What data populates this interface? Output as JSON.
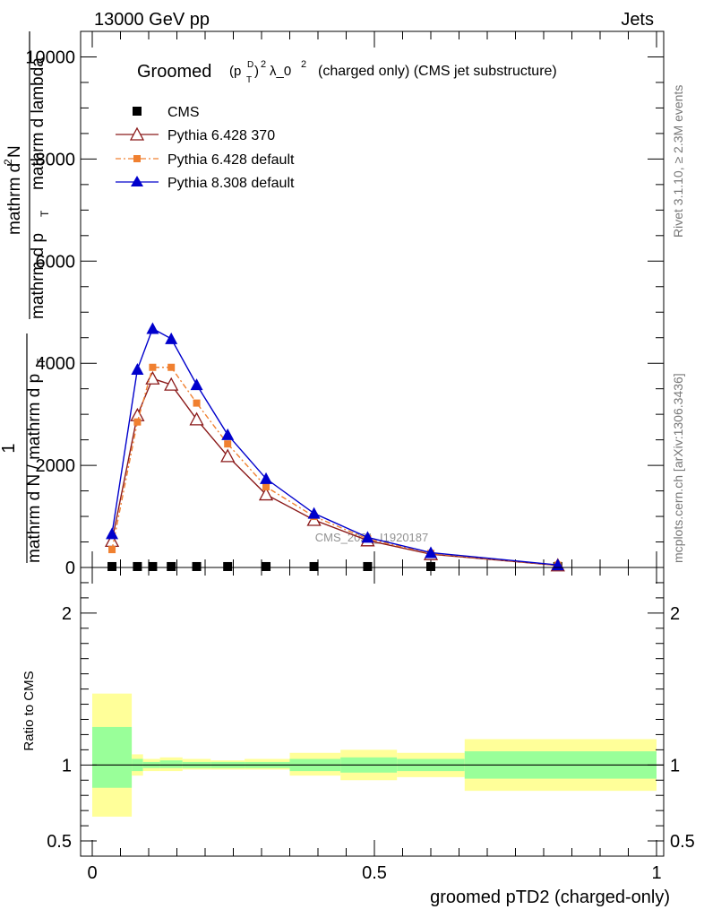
{
  "header": {
    "energy_label": "13000 GeV pp",
    "process_label": "Jets",
    "rivet_label": "Rivet 3.1.10, ≥ 2.3M events",
    "mcplots_label": "mcplots.cern.ch [arXiv:1306.3436]",
    "analysis_watermark": "CMS_2021_I1920187"
  },
  "chart_data": [
    {
      "type": "line",
      "title_main": "Groomed",
      "title_formula": "(p",
      "title_sup_D": "D",
      "title_sub_T": "T",
      "title_close": ")",
      "title_sup_2": "2",
      "title_lambda": "λ_0",
      "title_sup_2b": "2",
      "title_suffix": "(charged only) (CMS jet substructure)",
      "ylabel_top": "1",
      "ylabel_frac_bottom": "mathrm d N / mathrm d p",
      "ylabel_frac_bottom_sub": "T",
      "ylabel_num": "mathrm d",
      "ylabel_num_sup": "2",
      "ylabel_num_tail": "N",
      "ylabel_den": "mathrm d p",
      "ylabel_den_sub": "T",
      "ylabel_den_tail": "mathrm d lambda",
      "xlim": [
        0,
        1
      ],
      "ylim": [
        0,
        10500
      ],
      "y_ticks": [
        0,
        2000,
        4000,
        6000,
        8000,
        10000
      ],
      "y_tick_labels": [
        "0",
        "2000",
        "4000",
        "6000",
        "8000",
        "10000"
      ],
      "x": [
        0.035,
        0.08,
        0.107,
        0.14,
        0.185,
        0.24,
        0.308,
        0.393,
        0.488,
        0.6,
        0.825
      ],
      "series": [
        {
          "name": "CMS",
          "color": "#000000",
          "marker": "square",
          "values": [
            18,
            18,
            18,
            18,
            18,
            18,
            18,
            18,
            18,
            18,
            18
          ]
        },
        {
          "name": "Pythia 6.428 370",
          "color": "#8b1a1a",
          "marker": "open-triangle",
          "values": [
            520,
            2980,
            3700,
            3580,
            2900,
            2180,
            1430,
            930,
            530,
            260,
            40
          ]
        },
        {
          "name": "Pythia 6.428 default",
          "color": "#f08030",
          "marker": "square-small",
          "values": [
            350,
            2850,
            3920,
            3920,
            3220,
            2420,
            1580,
            1000,
            560,
            275,
            45
          ]
        },
        {
          "name": "Pythia 8.308 default",
          "color": "#0000cc",
          "marker": "filled-triangle",
          "values": [
            660,
            3880,
            4680,
            4480,
            3580,
            2600,
            1740,
            1060,
            590,
            290,
            50
          ]
        }
      ],
      "legend_position": "top-left"
    },
    {
      "type": "area",
      "ylabel": "Ratio to CMS",
      "xlabel": "groomed pTD2 (charged-only)",
      "ylim": [
        0.4,
        2.3
      ],
      "y_ticks": [
        0.5,
        1,
        2
      ],
      "y_tick_labels": [
        "0.5",
        "1",
        "2"
      ],
      "x_ticks": [
        0,
        0.5,
        1
      ],
      "x_tick_labels": [
        "0",
        "0.5",
        "1"
      ],
      "green_band_color": "#99ff99",
      "yellow_band_color": "#ffff99",
      "bins": [
        {
          "lo": 0.0,
          "hi": 0.07,
          "inner": [
            0.85,
            1.25
          ],
          "outer": [
            0.66,
            1.47
          ]
        },
        {
          "lo": 0.07,
          "hi": 0.09,
          "inner": [
            0.96,
            1.04
          ],
          "outer": [
            0.93,
            1.07
          ]
        },
        {
          "lo": 0.09,
          "hi": 0.12,
          "inner": [
            0.98,
            1.02
          ],
          "outer": [
            0.96,
            1.04
          ]
        },
        {
          "lo": 0.12,
          "hi": 0.16,
          "inner": [
            0.98,
            1.03
          ],
          "outer": [
            0.96,
            1.05
          ]
        },
        {
          "lo": 0.16,
          "hi": 0.21,
          "inner": [
            0.98,
            1.02
          ],
          "outer": [
            0.97,
            1.04
          ]
        },
        {
          "lo": 0.21,
          "hi": 0.27,
          "inner": [
            0.98,
            1.02
          ],
          "outer": [
            0.97,
            1.03
          ]
        },
        {
          "lo": 0.27,
          "hi": 0.35,
          "inner": [
            0.98,
            1.02
          ],
          "outer": [
            0.97,
            1.04
          ]
        },
        {
          "lo": 0.35,
          "hi": 0.44,
          "inner": [
            0.96,
            1.04
          ],
          "outer": [
            0.93,
            1.08
          ]
        },
        {
          "lo": 0.44,
          "hi": 0.54,
          "inner": [
            0.95,
            1.05
          ],
          "outer": [
            0.9,
            1.1
          ]
        },
        {
          "lo": 0.54,
          "hi": 0.66,
          "inner": [
            0.96,
            1.04
          ],
          "outer": [
            0.92,
            1.08
          ]
        },
        {
          "lo": 0.66,
          "hi": 1.0,
          "inner": [
            0.91,
            1.09
          ],
          "outer": [
            0.83,
            1.17
          ]
        }
      ]
    }
  ]
}
